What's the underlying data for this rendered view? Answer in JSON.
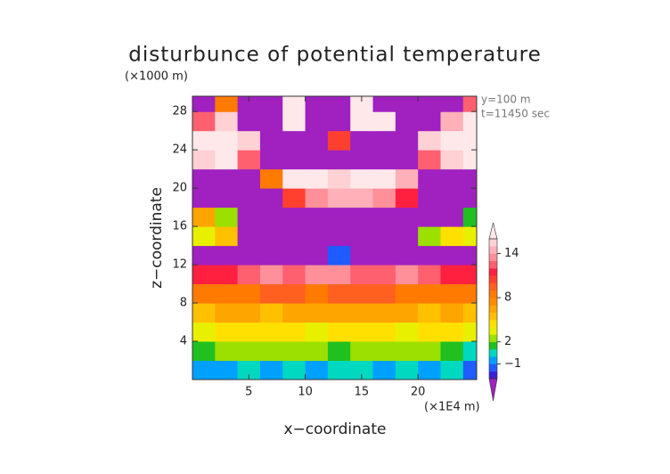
{
  "chart_data": {
    "type": "heatmap",
    "title": "disturbunce of potential temperature",
    "y_unit": "(×1000 m)",
    "x_unit": "(×1E4 m)",
    "annotations": [
      "y=100 m",
      "t=11450 sec"
    ],
    "xlabel": "x−coordinate",
    "ylabel": "z−coordinate",
    "xlim": [
      0,
      25.2
    ],
    "ylim": [
      0,
      29.6
    ],
    "xticks": [
      5,
      10,
      15,
      20
    ],
    "yticks": [
      4,
      8,
      12,
      16,
      20,
      24,
      28
    ],
    "x": [
      1,
      3,
      5,
      7,
      9,
      11,
      13,
      15,
      17,
      19,
      21,
      23,
      25
    ],
    "z": [
      1,
      3,
      5,
      7,
      9,
      11,
      13,
      15,
      17,
      19,
      21,
      23,
      25,
      27,
      29
    ],
    "cell_size": 2,
    "values": [
      [
        -1,
        -1,
        0,
        -1,
        0,
        -1,
        0,
        0,
        -1,
        0,
        -1,
        0,
        -2
      ],
      [
        1,
        2,
        2,
        2,
        2,
        2,
        1,
        2,
        2,
        2,
        2,
        1,
        0
      ],
      [
        3,
        4,
        4,
        4,
        4,
        3,
        4,
        4,
        4,
        3,
        4,
        4,
        3
      ],
      [
        5,
        6,
        6,
        5,
        6,
        6,
        6,
        6,
        6,
        6,
        5,
        6,
        5
      ],
      [
        8,
        8,
        8,
        9,
        9,
        8,
        9,
        9,
        9,
        8,
        8,
        8,
        8
      ],
      [
        11,
        11,
        12,
        13,
        12,
        13,
        13,
        12,
        12,
        13,
        12,
        11,
        11
      ],
      [
        -4,
        -4,
        -4,
        -4,
        -4,
        -4,
        -2,
        -4,
        -4,
        -4,
        -4,
        -4,
        -4
      ],
      [
        3,
        5,
        -4,
        -4,
        -4,
        -4,
        -4,
        -4,
        -4,
        -4,
        2,
        4,
        3
      ],
      [
        6,
        2,
        -4,
        -4,
        -4,
        -4,
        -4,
        -4,
        -4,
        -4,
        -4,
        -4,
        1
      ],
      [
        -4,
        -4,
        -4,
        -4,
        10,
        13,
        14,
        14,
        13,
        11,
        -4,
        -4,
        -4
      ],
      [
        -4,
        -4,
        -4,
        8,
        16,
        16,
        15,
        16,
        16,
        14,
        -4,
        -4,
        -4
      ],
      [
        15,
        16,
        12,
        -4,
        -4,
        -4,
        -4,
        -4,
        -4,
        -4,
        12,
        15,
        16
      ],
      [
        16,
        17,
        15,
        -4,
        -4,
        -4,
        10,
        -4,
        -4,
        -4,
        15,
        17,
        16
      ],
      [
        12,
        15,
        -4,
        -4,
        17,
        -4,
        -4,
        17,
        17,
        -4,
        -4,
        14,
        17
      ],
      [
        -4,
        8,
        -4,
        -4,
        17,
        -4,
        -4,
        17,
        -4,
        -4,
        -4,
        -4,
        12
      ]
    ],
    "colorbar": {
      "levels": [
        -3,
        -2,
        -1,
        0,
        1,
        2,
        3,
        4,
        5,
        6,
        7,
        8,
        9,
        10,
        11,
        12,
        13,
        14,
        15,
        16
      ],
      "colors": [
        "#3a1fd6",
        "#1e5cff",
        "#00a0ff",
        "#00d8c0",
        "#20c020",
        "#9be000",
        "#e8f000",
        "#ffe000",
        "#ffc000",
        "#ffa500",
        "#ff8c00",
        "#ff7a00",
        "#ff6020",
        "#ff4030",
        "#ff2040",
        "#ff6070",
        "#ff909a",
        "#ffb0b8",
        "#ffd0d4"
      ],
      "under_color": "#a020c0",
      "over_color": "#ffe8ea",
      "ticks": [
        {
          "value": -1,
          "label": "−1"
        },
        2,
        8,
        14
      ]
    }
  }
}
